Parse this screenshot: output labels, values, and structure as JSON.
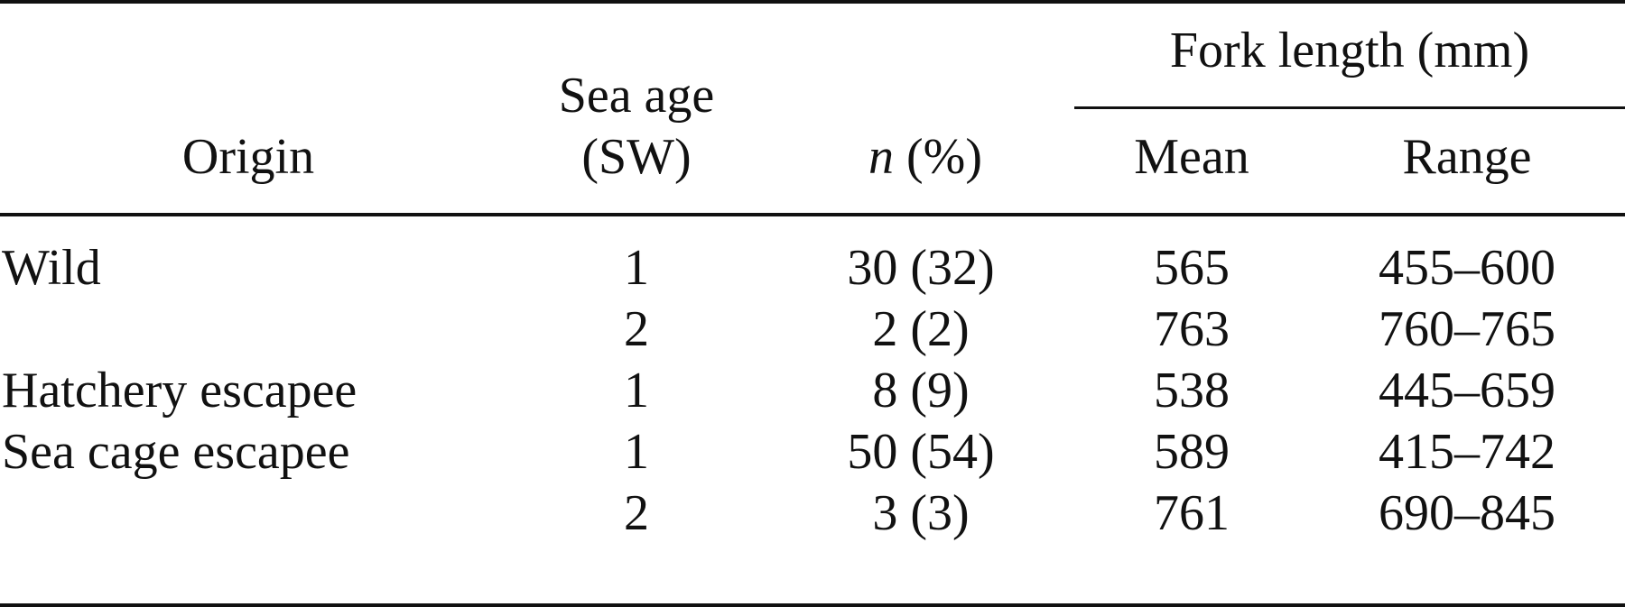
{
  "table": {
    "headers": {
      "group_label": "Fork length (mm)",
      "origin": "Origin",
      "sea_age_line1": "Sea age",
      "sea_age_line2": "(SW)",
      "n_italic": "n",
      "n_suffix": " (%)",
      "mean": "Mean",
      "range": "Range"
    },
    "rows": [
      {
        "origin": "Wild",
        "sea_age": "1",
        "n": "30 (32)",
        "mean": "565",
        "range": "455–600"
      },
      {
        "origin": "",
        "sea_age": "2",
        "n": "2 (2)",
        "mean": "763",
        "range": "760–765"
      },
      {
        "origin": "Hatchery escapee",
        "sea_age": "1",
        "n": "8 (9)",
        "mean": "538",
        "range": "445–659"
      },
      {
        "origin": "Sea cage escapee",
        "sea_age": "1",
        "n": "50 (54)",
        "mean": "589",
        "range": "415–742"
      },
      {
        "origin": "",
        "sea_age": "2",
        "n": "3 (3)",
        "mean": "761",
        "range": "690–845"
      }
    ]
  }
}
